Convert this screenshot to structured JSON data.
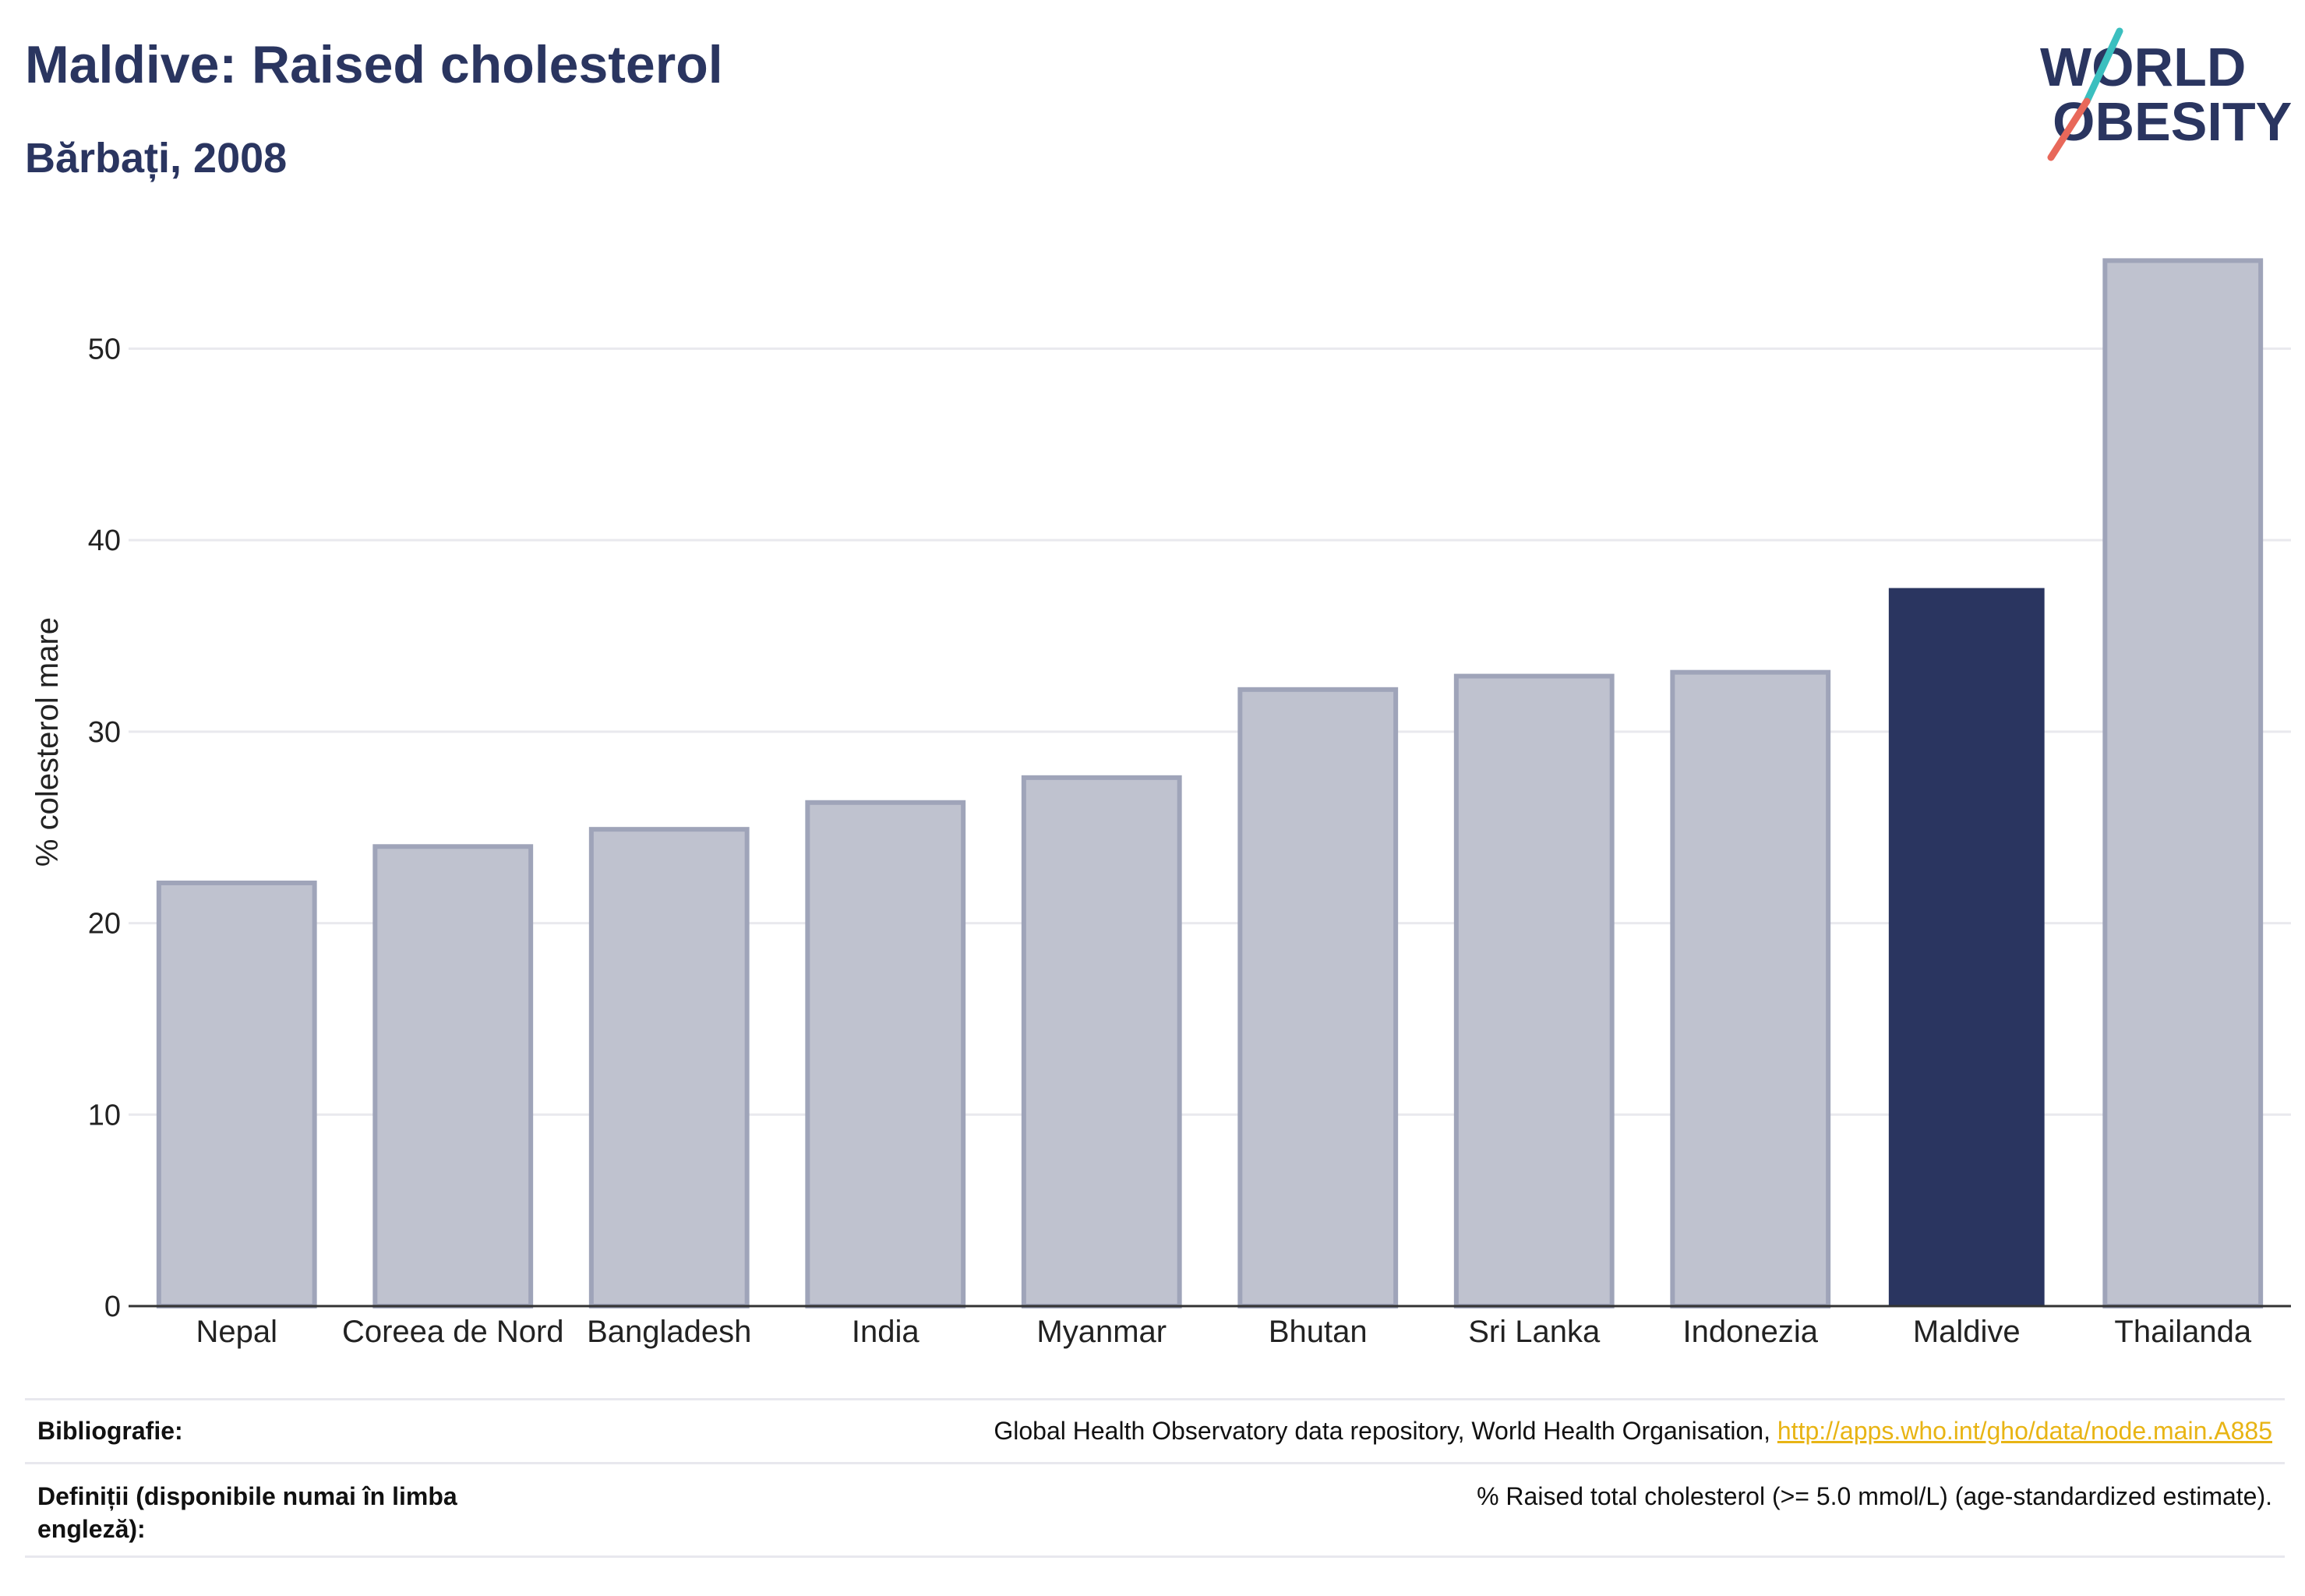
{
  "header": {
    "title": "Maldive: Raised cholesterol",
    "subtitle": "Bărbați, 2008"
  },
  "logo": {
    "line1": "WORLD",
    "line2": "OBESITY",
    "accent_teal": "#3bbfbf",
    "accent_coral": "#e8685a",
    "text_color": "#2a3560"
  },
  "colors": {
    "bar": "#bfc2cf",
    "bar_stroke": "#9fa4b9",
    "highlight": "#2a3560",
    "grid": "#e9e9ee",
    "axis": "#333333"
  },
  "chart_data": {
    "type": "bar",
    "categories": [
      "Nepal",
      "Coreea de Nord",
      "Bangladesh",
      "India",
      "Myanmar",
      "Bhutan",
      "Sri Lanka",
      "Indonezia",
      "Maldive",
      "Thailanda"
    ],
    "values": [
      22.1,
      24.0,
      24.9,
      26.3,
      27.6,
      32.2,
      32.9,
      33.1,
      37.5,
      54.6
    ],
    "highlight": "Maldive",
    "ylabel": "% colesterol mare",
    "xlabel": "",
    "ylim": [
      0,
      56
    ],
    "yticks": [
      0,
      10,
      20,
      30,
      40,
      50
    ],
    "grid": true
  },
  "footer": {
    "source_label": "Bibliografie:",
    "source_text": "Global Health Observatory data repository, World Health Organisation, ",
    "source_link": "http://apps.who.int/gho/data/node.main.A885",
    "definition_label": "Definiții (disponibile numai în limba engleză):",
    "definition_text": "% Raised total cholesterol (>= 5.0 mmol/L) (age-standardized estimate)."
  }
}
